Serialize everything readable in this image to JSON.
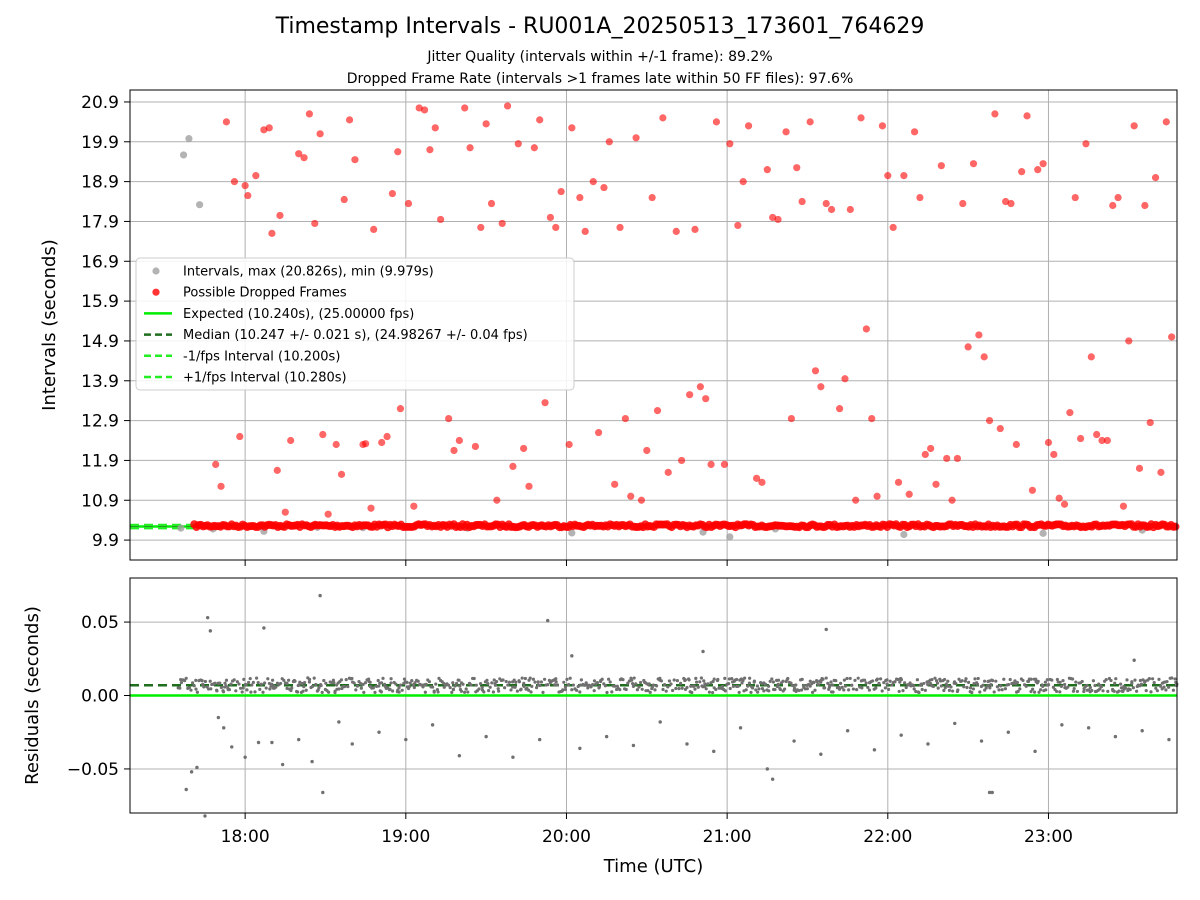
{
  "title": "Timestamp Intervals - RU001A_20250513_173601_764629",
  "subtitle_1": "Jitter Quality (intervals within +/-1 frame): 89.2%",
  "subtitle_2": "Dropped Frame Rate (intervals >1 frames late within 50 FF files): 97.6%",
  "colors": {
    "dropped": "#ff0000",
    "interval_points": "#a0a0a0",
    "expected": "#00ee00",
    "median": "#1e6e1e",
    "fps_interval": "#22ee22",
    "residual_points": "#707070",
    "grid": "#b0b0b0"
  },
  "chart_data": [
    {
      "type": "scatter",
      "ylabel": "Intervals (seconds)",
      "xlabel": "",
      "xlim": [
        "17:17",
        "23:48"
      ],
      "ylim": [
        9.4,
        21.2
      ],
      "x_ticks": [
        "18:00",
        "19:00",
        "20:00",
        "21:00",
        "22:00",
        "23:00"
      ],
      "y_ticks": [
        "9.9",
        "10.9",
        "11.9",
        "12.9",
        "13.9",
        "14.9",
        "15.9",
        "16.9",
        "17.9",
        "18.9",
        "19.9",
        "20.9"
      ],
      "legend": {
        "placement": "center-left",
        "entries": [
          "Intervals, max (20.826s), min (9.979s)",
          "Possible Dropped Frames",
          "Expected (10.240s), (25.00000 fps)",
          "Median (10.247 +/- 0.021 s), (24.98267 +/- 0.04 fps)",
          "-1/fps Interval (10.200s)",
          "+1/fps Interval (10.280s)"
        ]
      },
      "reference_lines": {
        "expected": 10.24,
        "median": 10.247,
        "minus_1_fps": 10.2,
        "plus_1_fps": 10.28
      },
      "intervals_series": {
        "name": "Intervals, max (20.826s), min (9.979s)",
        "points": [
          [
            "17:37",
            19.57
          ],
          [
            "17:39",
            19.98
          ],
          [
            "17:43",
            18.32
          ],
          [
            "17:36",
            10.2
          ],
          [
            "17:48",
            10.18
          ],
          [
            "18:07",
            10.12
          ],
          [
            "18:27",
            10.22
          ],
          [
            "20:02",
            10.08
          ],
          [
            "20:51",
            10.1
          ],
          [
            "21:01",
            9.98
          ],
          [
            "22:06",
            10.04
          ],
          [
            "22:58",
            10.07
          ],
          [
            "23:35",
            10.15
          ],
          [
            "21:18",
            10.18
          ],
          [
            "19:23",
            10.2
          ],
          [
            "18:44",
            10.21
          ]
        ]
      },
      "dropped_series": {
        "name": "Possible Dropped Frames",
        "band": {
          "from": "17:41",
          "to": "23:48",
          "value": 10.26
        },
        "points": [
          [
            "17:49",
            11.8
          ],
          [
            "17:51",
            11.25
          ],
          [
            "17:53",
            20.4
          ],
          [
            "17:56",
            18.9
          ],
          [
            "17:58",
            12.5
          ],
          [
            "18:00",
            18.8
          ],
          [
            "18:01",
            18.55
          ],
          [
            "18:04",
            19.05
          ],
          [
            "18:07",
            20.2
          ],
          [
            "18:09",
            20.25
          ],
          [
            "18:10",
            17.6
          ],
          [
            "18:12",
            11.65
          ],
          [
            "18:13",
            18.05
          ],
          [
            "18:15",
            10.6
          ],
          [
            "18:17",
            12.4
          ],
          [
            "18:20",
            19.6
          ],
          [
            "18:22",
            19.5
          ],
          [
            "18:24",
            20.6
          ],
          [
            "18:26",
            17.85
          ],
          [
            "18:28",
            20.1
          ],
          [
            "18:29",
            12.55
          ],
          [
            "18:31",
            10.55
          ],
          [
            "18:34",
            12.3
          ],
          [
            "18:36",
            11.55
          ],
          [
            "18:37",
            18.45
          ],
          [
            "18:39",
            20.45
          ],
          [
            "18:41",
            19.45
          ],
          [
            "18:44",
            12.3
          ],
          [
            "18:45",
            12.32
          ],
          [
            "18:47",
            10.7
          ],
          [
            "18:48",
            17.7
          ],
          [
            "18:51",
            12.35
          ],
          [
            "18:53",
            12.5
          ],
          [
            "18:55",
            18.6
          ],
          [
            "18:57",
            19.65
          ],
          [
            "18:58",
            13.2
          ],
          [
            "19:01",
            18.35
          ],
          [
            "19:03",
            10.75
          ],
          [
            "19:05",
            20.75
          ],
          [
            "19:07",
            20.7
          ],
          [
            "19:09",
            19.7
          ],
          [
            "19:11",
            20.25
          ],
          [
            "19:13",
            17.95
          ],
          [
            "19:16",
            12.95
          ],
          [
            "19:18",
            12.15
          ],
          [
            "19:20",
            12.4
          ],
          [
            "19:22",
            20.75
          ],
          [
            "19:24",
            19.75
          ],
          [
            "19:26",
            12.25
          ],
          [
            "19:28",
            17.75
          ],
          [
            "19:30",
            20.35
          ],
          [
            "19:32",
            18.35
          ],
          [
            "19:34",
            10.9
          ],
          [
            "19:36",
            17.85
          ],
          [
            "19:38",
            20.8
          ],
          [
            "19:40",
            11.75
          ],
          [
            "19:42",
            19.85
          ],
          [
            "19:44",
            12.2
          ],
          [
            "19:46",
            11.25
          ],
          [
            "19:48",
            19.75
          ],
          [
            "19:50",
            20.45
          ],
          [
            "19:52",
            13.35
          ],
          [
            "19:54",
            18.0
          ],
          [
            "19:56",
            17.75
          ],
          [
            "19:58",
            18.65
          ],
          [
            "20:01",
            12.3
          ],
          [
            "20:02",
            20.25
          ],
          [
            "20:05",
            18.5
          ],
          [
            "20:07",
            17.65
          ],
          [
            "20:10",
            18.9
          ],
          [
            "20:12",
            12.6
          ],
          [
            "20:14",
            18.75
          ],
          [
            "20:16",
            19.9
          ],
          [
            "20:18",
            11.3
          ],
          [
            "20:20",
            17.75
          ],
          [
            "20:22",
            12.95
          ],
          [
            "20:24",
            11.0
          ],
          [
            "20:26",
            20.0
          ],
          [
            "20:28",
            10.9
          ],
          [
            "20:30",
            12.15
          ],
          [
            "20:32",
            18.5
          ],
          [
            "20:34",
            13.15
          ],
          [
            "20:36",
            20.5
          ],
          [
            "20:38",
            11.6
          ],
          [
            "20:41",
            17.65
          ],
          [
            "20:43",
            11.9
          ],
          [
            "20:46",
            13.55
          ],
          [
            "20:48",
            17.7
          ],
          [
            "20:50",
            13.75
          ],
          [
            "20:52",
            13.45
          ],
          [
            "20:54",
            11.8
          ],
          [
            "20:56",
            20.4
          ],
          [
            "20:59",
            11.8
          ],
          [
            "21:01",
            19.85
          ],
          [
            "21:04",
            17.8
          ],
          [
            "21:06",
            18.9
          ],
          [
            "21:08",
            20.3
          ],
          [
            "21:11",
            11.45
          ],
          [
            "21:13",
            11.35
          ],
          [
            "21:15",
            19.2
          ],
          [
            "21:17",
            18.0
          ],
          [
            "21:19",
            17.95
          ],
          [
            "21:22",
            20.15
          ],
          [
            "21:24",
            12.95
          ],
          [
            "21:26",
            19.25
          ],
          [
            "21:28",
            18.4
          ],
          [
            "21:31",
            20.4
          ],
          [
            "21:33",
            14.15
          ],
          [
            "21:35",
            13.75
          ],
          [
            "21:37",
            18.35
          ],
          [
            "21:39",
            18.2
          ],
          [
            "21:42",
            13.2
          ],
          [
            "21:44",
            13.95
          ],
          [
            "21:46",
            18.2
          ],
          [
            "21:48",
            10.9
          ],
          [
            "21:50",
            20.5
          ],
          [
            "21:52",
            15.2
          ],
          [
            "21:54",
            12.95
          ],
          [
            "21:56",
            11.0
          ],
          [
            "21:58",
            20.3
          ],
          [
            "22:00",
            19.05
          ],
          [
            "22:02",
            17.75
          ],
          [
            "22:04",
            11.35
          ],
          [
            "22:06",
            19.05
          ],
          [
            "22:08",
            11.05
          ],
          [
            "22:10",
            20.15
          ],
          [
            "22:12",
            18.5
          ],
          [
            "22:14",
            12.05
          ],
          [
            "22:16",
            12.2
          ],
          [
            "22:18",
            11.3
          ],
          [
            "22:20",
            19.3
          ],
          [
            "22:22",
            11.95
          ],
          [
            "22:24",
            10.9
          ],
          [
            "22:26",
            11.95
          ],
          [
            "22:28",
            18.35
          ],
          [
            "22:30",
            14.75
          ],
          [
            "22:32",
            19.35
          ],
          [
            "22:34",
            15.05
          ],
          [
            "22:36",
            14.5
          ],
          [
            "22:38",
            12.9
          ],
          [
            "22:40",
            20.6
          ],
          [
            "22:42",
            12.7
          ],
          [
            "22:44",
            18.4
          ],
          [
            "22:46",
            18.35
          ],
          [
            "22:48",
            12.3
          ],
          [
            "22:50",
            19.15
          ],
          [
            "22:52",
            20.55
          ],
          [
            "22:54",
            11.15
          ],
          [
            "22:56",
            19.2
          ],
          [
            "22:58",
            19.35
          ],
          [
            "23:00",
            12.35
          ],
          [
            "23:02",
            12.05
          ],
          [
            "23:04",
            10.95
          ],
          [
            "23:06",
            10.8
          ],
          [
            "23:08",
            13.1
          ],
          [
            "23:10",
            18.5
          ],
          [
            "23:12",
            12.45
          ],
          [
            "23:14",
            19.85
          ],
          [
            "23:16",
            14.5
          ],
          [
            "23:18",
            12.55
          ],
          [
            "23:20",
            12.4
          ],
          [
            "23:22",
            12.4
          ],
          [
            "23:24",
            18.3
          ],
          [
            "23:26",
            18.5
          ],
          [
            "23:28",
            10.75
          ],
          [
            "23:30",
            14.9
          ],
          [
            "23:32",
            20.3
          ],
          [
            "23:34",
            11.7
          ],
          [
            "23:36",
            18.3
          ],
          [
            "23:38",
            12.85
          ],
          [
            "23:40",
            19.0
          ],
          [
            "23:42",
            11.6
          ],
          [
            "23:44",
            20.4
          ],
          [
            "23:46",
            15.0
          ]
        ]
      }
    },
    {
      "type": "scatter",
      "ylabel": "Residuals (seconds)",
      "xlabel": "Time (UTC)",
      "xlim": [
        "17:17",
        "23:48"
      ],
      "ylim": [
        -0.08,
        0.08
      ],
      "x_ticks": [
        "18:00",
        "19:00",
        "20:00",
        "21:00",
        "22:00",
        "23:00"
      ],
      "y_ticks": [
        "−0.05",
        "0.00",
        "0.05"
      ],
      "reference_lines": {
        "zero": 0.0,
        "median": 0.007
      },
      "residual_points": [
        [
          "17:38",
          -0.064
        ],
        [
          "17:40",
          -0.052
        ],
        [
          "17:42",
          -0.049
        ],
        [
          "17:46",
          0.053
        ],
        [
          "17:47",
          0.044
        ],
        [
          "17:45",
          -0.082
        ],
        [
          "18:07",
          0.046
        ],
        [
          "18:28",
          0.068
        ],
        [
          "18:29",
          -0.066
        ],
        [
          "19:53",
          0.051
        ],
        [
          "20:02",
          0.027
        ],
        [
          "20:51",
          0.03
        ],
        [
          "21:17",
          -0.057
        ],
        [
          "21:37",
          0.045
        ],
        [
          "22:38",
          -0.066
        ],
        [
          "22:39",
          -0.066
        ],
        [
          "23:32",
          0.024
        ],
        [
          "17:50",
          -0.015
        ],
        [
          "17:52",
          -0.022
        ],
        [
          "17:55",
          -0.035
        ],
        [
          "18:00",
          -0.042
        ],
        [
          "18:05",
          -0.032
        ],
        [
          "18:10",
          -0.032
        ],
        [
          "18:14",
          -0.047
        ],
        [
          "18:20",
          -0.03
        ],
        [
          "18:25",
          -0.045
        ],
        [
          "18:35",
          -0.018
        ],
        [
          "18:40",
          -0.033
        ],
        [
          "18:50",
          -0.025
        ],
        [
          "19:00",
          -0.03
        ],
        [
          "19:10",
          -0.02
        ],
        [
          "19:20",
          -0.041
        ],
        [
          "19:30",
          -0.028
        ],
        [
          "19:40",
          -0.042
        ],
        [
          "19:50",
          -0.03
        ],
        [
          "20:05",
          -0.036
        ],
        [
          "20:15",
          -0.028
        ],
        [
          "20:25",
          -0.034
        ],
        [
          "20:35",
          -0.018
        ],
        [
          "20:45",
          -0.033
        ],
        [
          "20:55",
          -0.038
        ],
        [
          "21:05",
          -0.022
        ],
        [
          "21:15",
          -0.05
        ],
        [
          "21:25",
          -0.031
        ],
        [
          "21:35",
          -0.04
        ],
        [
          "21:45",
          -0.024
        ],
        [
          "21:55",
          -0.037
        ],
        [
          "22:05",
          -0.027
        ],
        [
          "22:15",
          -0.033
        ],
        [
          "22:25",
          -0.019
        ],
        [
          "22:35",
          -0.031
        ],
        [
          "22:45",
          -0.025
        ],
        [
          "22:55",
          -0.038
        ],
        [
          "23:05",
          -0.02
        ],
        [
          "23:15",
          -0.022
        ],
        [
          "23:25",
          -0.028
        ],
        [
          "23:35",
          -0.024
        ],
        [
          "23:45",
          -0.03
        ]
      ],
      "residual_band": {
        "from": "17:35",
        "to": "23:48",
        "center": 0.007,
        "spread": 0.005
      }
    }
  ]
}
